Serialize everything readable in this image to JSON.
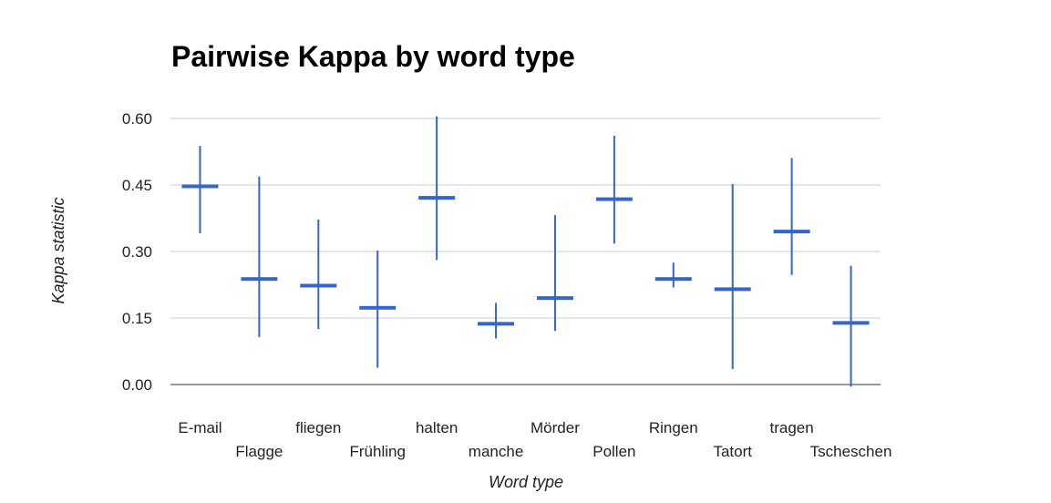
{
  "chart_data": {
    "type": "candlestick",
    "title": "Pairwise Kappa by word type",
    "xlabel": "Word type",
    "ylabel": "Kappa statistic",
    "ylim": [
      0.0,
      0.6
    ],
    "yticks": [
      "0.00",
      "0.15",
      "0.30",
      "0.45",
      "0.60"
    ],
    "grid": true,
    "categories": [
      "E-mail",
      "Flagge",
      "fliegen",
      "Frühling",
      "halten",
      "manche",
      "Mörder",
      "Pollen",
      "Ringen",
      "Tatort",
      "tragen",
      "Tscheschen"
    ],
    "series": [
      {
        "value": [
          0.447,
          0.238,
          0.223,
          0.173,
          0.421,
          0.137,
          0.195,
          0.418,
          0.238,
          0.215,
          0.345,
          0.139
        ],
        "low": [
          0.341,
          0.107,
          0.125,
          0.038,
          0.281,
          0.104,
          0.121,
          0.318,
          0.219,
          0.035,
          0.247,
          -0.005
        ],
        "high": [
          0.538,
          0.469,
          0.372,
          0.302,
          0.605,
          0.184,
          0.382,
          0.561,
          0.275,
          0.452,
          0.511,
          0.268
        ]
      }
    ],
    "colors": {
      "series": "#3366cc",
      "grid": "#cccccc",
      "baseline": "#333333"
    }
  }
}
